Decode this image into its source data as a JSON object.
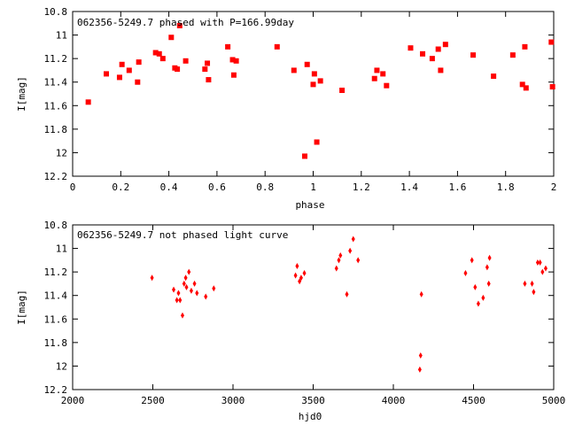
{
  "chart_data": [
    {
      "type": "scatter",
      "title": "062356-5249.7 phased with P=166.99day",
      "xlabel": "phase",
      "ylabel": "I[mag]",
      "xlim": [
        0,
        2
      ],
      "ylim": [
        10.8,
        12.2
      ],
      "y_inverted": true,
      "marker": "square",
      "color": "#ff0000",
      "xticks": [
        0,
        0.2,
        0.4,
        0.6,
        0.8,
        1,
        1.2,
        1.4,
        1.6,
        1.8,
        2
      ],
      "xtick_labels": [
        "0",
        "0.2",
        "0.4",
        "0.6",
        "0.8",
        "1",
        "1.2",
        "1.4",
        "1.6",
        "1.8",
        "2"
      ],
      "yticks": [
        10.8,
        11,
        11.2,
        11.4,
        11.6,
        11.8,
        12,
        12.2
      ],
      "ytick_labels": [
        "10.8",
        "11",
        "11.2",
        "11.4",
        "11.6",
        "11.8",
        "12",
        "12.2"
      ],
      "x": [
        0.065,
        0.14,
        0.195,
        0.205,
        0.235,
        0.27,
        0.275,
        0.345,
        0.36,
        0.375,
        0.41,
        0.425,
        0.435,
        0.445,
        0.47,
        0.55,
        0.56,
        0.565,
        0.645,
        0.665,
        0.67,
        0.68,
        0.85,
        0.92,
        0.965,
        0.975,
        1.0,
        1.005,
        1.015,
        1.03,
        1.12,
        1.255,
        1.265,
        1.29,
        1.305,
        1.405,
        1.455,
        1.495,
        1.52,
        1.53,
        1.55,
        1.665,
        1.75,
        1.83,
        1.87,
        1.88,
        1.885,
        1.99,
        1.995
      ],
      "y": [
        11.57,
        11.33,
        11.36,
        11.25,
        11.3,
        11.4,
        11.23,
        11.15,
        11.16,
        11.2,
        11.02,
        11.28,
        11.29,
        10.92,
        11.22,
        11.29,
        11.24,
        11.38,
        11.1,
        11.21,
        11.34,
        11.22,
        11.1,
        11.3,
        12.03,
        11.25,
        11.42,
        11.33,
        11.91,
        11.39,
        11.47,
        11.37,
        11.3,
        11.33,
        11.43,
        11.11,
        11.16,
        11.2,
        11.12,
        11.3,
        11.08,
        11.17,
        11.35,
        11.17,
        11.42,
        11.1,
        11.45,
        11.06,
        11.44
      ]
    },
    {
      "type": "scatter",
      "title": "062356-5249.7 not phased light curve",
      "xlabel": "hjd0",
      "ylabel": "I[mag]",
      "xlim": [
        2000,
        5000
      ],
      "ylim": [
        10.8,
        12.2
      ],
      "y_inverted": true,
      "marker": "diamond",
      "color": "#ff0000",
      "xticks": [
        2000,
        2500,
        3000,
        3500,
        4000,
        4500,
        5000
      ],
      "xtick_labels": [
        "2000",
        "2500",
        "3000",
        "3500",
        "4000",
        "4500",
        "5000"
      ],
      "yticks": [
        10.8,
        11,
        11.2,
        11.4,
        11.6,
        11.8,
        12,
        12.2
      ],
      "ytick_labels": [
        "10.8",
        "11",
        "11.2",
        "11.4",
        "11.6",
        "11.8",
        "12",
        "12.2"
      ],
      "x": [
        2495,
        2630,
        2650,
        2660,
        2670,
        2685,
        2695,
        2705,
        2710,
        2725,
        2740,
        2760,
        2775,
        2830,
        2880,
        3390,
        3400,
        3415,
        3425,
        3445,
        3645,
        3660,
        3670,
        3710,
        3730,
        3750,
        3780,
        4165,
        4170,
        4175,
        4450,
        4490,
        4510,
        4530,
        4560,
        4585,
        4595,
        4600,
        4820,
        4865,
        4875,
        4900,
        4915,
        4930,
        4950
      ],
      "y": [
        11.25,
        11.35,
        11.44,
        11.38,
        11.44,
        11.57,
        11.3,
        11.25,
        11.33,
        11.2,
        11.36,
        11.3,
        11.38,
        11.41,
        11.34,
        11.23,
        11.15,
        11.28,
        11.25,
        11.21,
        11.17,
        11.1,
        11.06,
        11.39,
        11.02,
        10.92,
        11.1,
        12.03,
        11.91,
        11.39,
        11.21,
        11.1,
        11.33,
        11.47,
        11.42,
        11.16,
        11.3,
        11.08,
        11.3,
        11.3,
        11.37,
        11.12,
        11.12,
        11.2,
        11.17
      ]
    }
  ]
}
